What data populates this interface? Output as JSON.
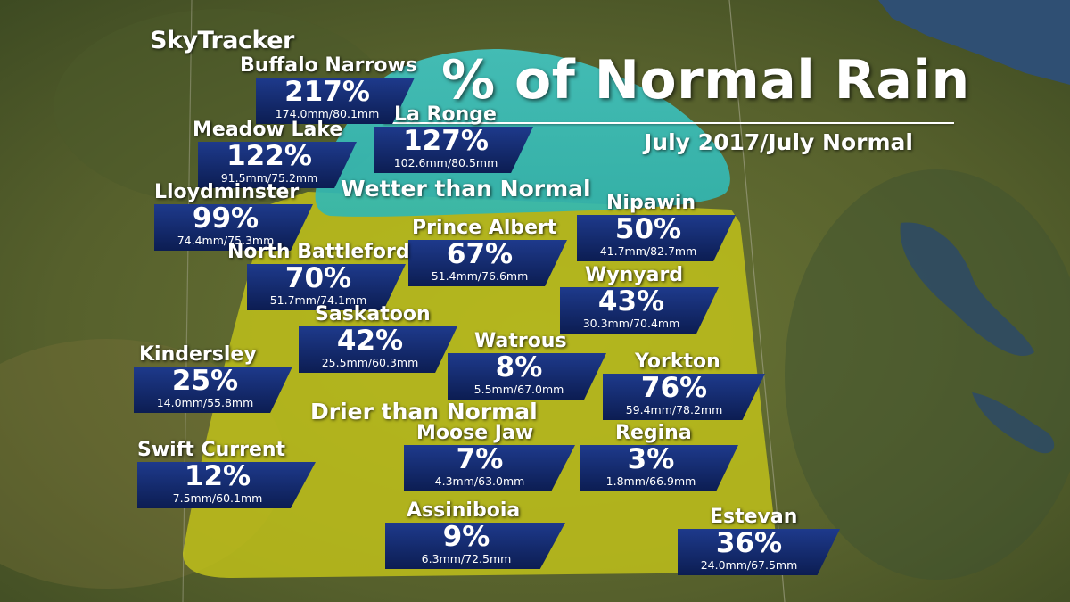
{
  "brand": "SkyTracker",
  "title": "% of Normal Rain",
  "subtitle": "July 2017/July Normal",
  "zones": {
    "wetter": "Wetter than Normal",
    "drier": "Drier than Normal"
  },
  "colors": {
    "wetter_zone": "#3cc8c0",
    "drier_zone": "#c8c818",
    "label_box": "#142a6c"
  },
  "stations": {
    "buffalo_narrows": {
      "name": "Buffalo Narrows",
      "percent": "217%",
      "amounts": "174.0mm/80.1mm"
    },
    "la_ronge": {
      "name": "La Ronge",
      "percent": "127%",
      "amounts": "102.6mm/80.5mm"
    },
    "meadow_lake": {
      "name": "Meadow Lake",
      "percent": "122%",
      "amounts": "91.5mm/75.2mm"
    },
    "lloydminster": {
      "name": "Lloydminster",
      "percent": "99%",
      "amounts": "74.4mm/75.3mm"
    },
    "nipawin": {
      "name": "Nipawin",
      "percent": "50%",
      "amounts": "41.7mm/82.7mm"
    },
    "prince_albert": {
      "name": "Prince Albert",
      "percent": "67%",
      "amounts": "51.4mm/76.6mm"
    },
    "north_battleford": {
      "name": "North Battleford",
      "percent": "70%",
      "amounts": "51.7mm/74.1mm"
    },
    "wynyard": {
      "name": "Wynyard",
      "percent": "43%",
      "amounts": "30.3mm/70.4mm"
    },
    "saskatoon": {
      "name": "Saskatoon",
      "percent": "42%",
      "amounts": "25.5mm/60.3mm"
    },
    "kindersley": {
      "name": "Kindersley",
      "percent": "25%",
      "amounts": "14.0mm/55.8mm"
    },
    "watrous": {
      "name": "Watrous",
      "percent": "8%",
      "amounts": "5.5mm/67.0mm"
    },
    "yorkton": {
      "name": "Yorkton",
      "percent": "76%",
      "amounts": "59.4mm/78.2mm"
    },
    "moose_jaw": {
      "name": "Moose Jaw",
      "percent": "7%",
      "amounts": "4.3mm/63.0mm"
    },
    "regina": {
      "name": "Regina",
      "percent": "3%",
      "amounts": "1.8mm/66.9mm"
    },
    "swift_current": {
      "name": "Swift Current",
      "percent": "12%",
      "amounts": "7.5mm/60.1mm"
    },
    "assiniboia": {
      "name": "Assiniboia",
      "percent": "9%",
      "amounts": "6.3mm/72.5mm"
    },
    "estevan": {
      "name": "Estevan",
      "percent": "36%",
      "amounts": "24.0mm/67.5mm"
    }
  }
}
